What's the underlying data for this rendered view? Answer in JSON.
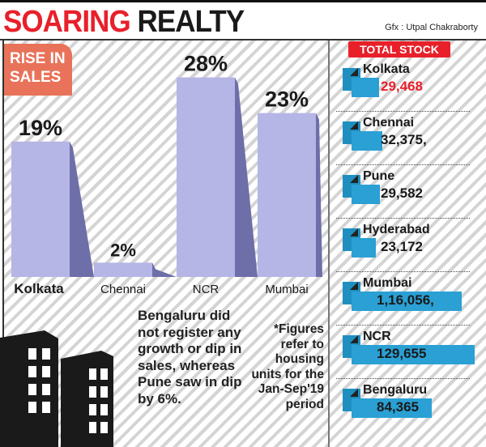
{
  "title_part1": "SOARING",
  "title_part2": "REALTY",
  "credit": "Gfx : Utpal Chakraborty",
  "colors": {
    "accent": "#e8202a",
    "badge": "#e8735a",
    "bar": "#b5b5e6",
    "bar_shadow": "#6e6ea8",
    "stock_bar": "#2aa0d4"
  },
  "chart_data": [
    {
      "type": "bar",
      "title": "RISE IN SALES",
      "categories": [
        "Kolkata",
        "Chennai",
        "NCR",
        "Mumbai"
      ],
      "values": [
        19,
        2,
        28,
        23
      ],
      "labels": [
        "19%",
        "2%",
        "28%",
        "23%"
      ],
      "unit": "%"
    },
    {
      "type": "bar",
      "orientation": "horizontal",
      "title": "TOTAL STOCK",
      "categories": [
        "Kolkata",
        "Chennai",
        "Pune",
        "Hyderabad",
        "Mumbai",
        "NCR",
        "Bengaluru"
      ],
      "values": [
        29468,
        32375,
        29582,
        23172,
        116056,
        129655,
        84365
      ],
      "labels": [
        "29,468",
        "32,375,",
        "29,582",
        "23,172",
        "1,16,056,",
        "129,655",
        "84,365"
      ]
    }
  ],
  "note_left": "Bengaluru did not register any growth or dip in sales, whereas Pune saw in dip by 6%.",
  "note_right": "*Figures refer to housing units for the Jan-Sep'19 period"
}
